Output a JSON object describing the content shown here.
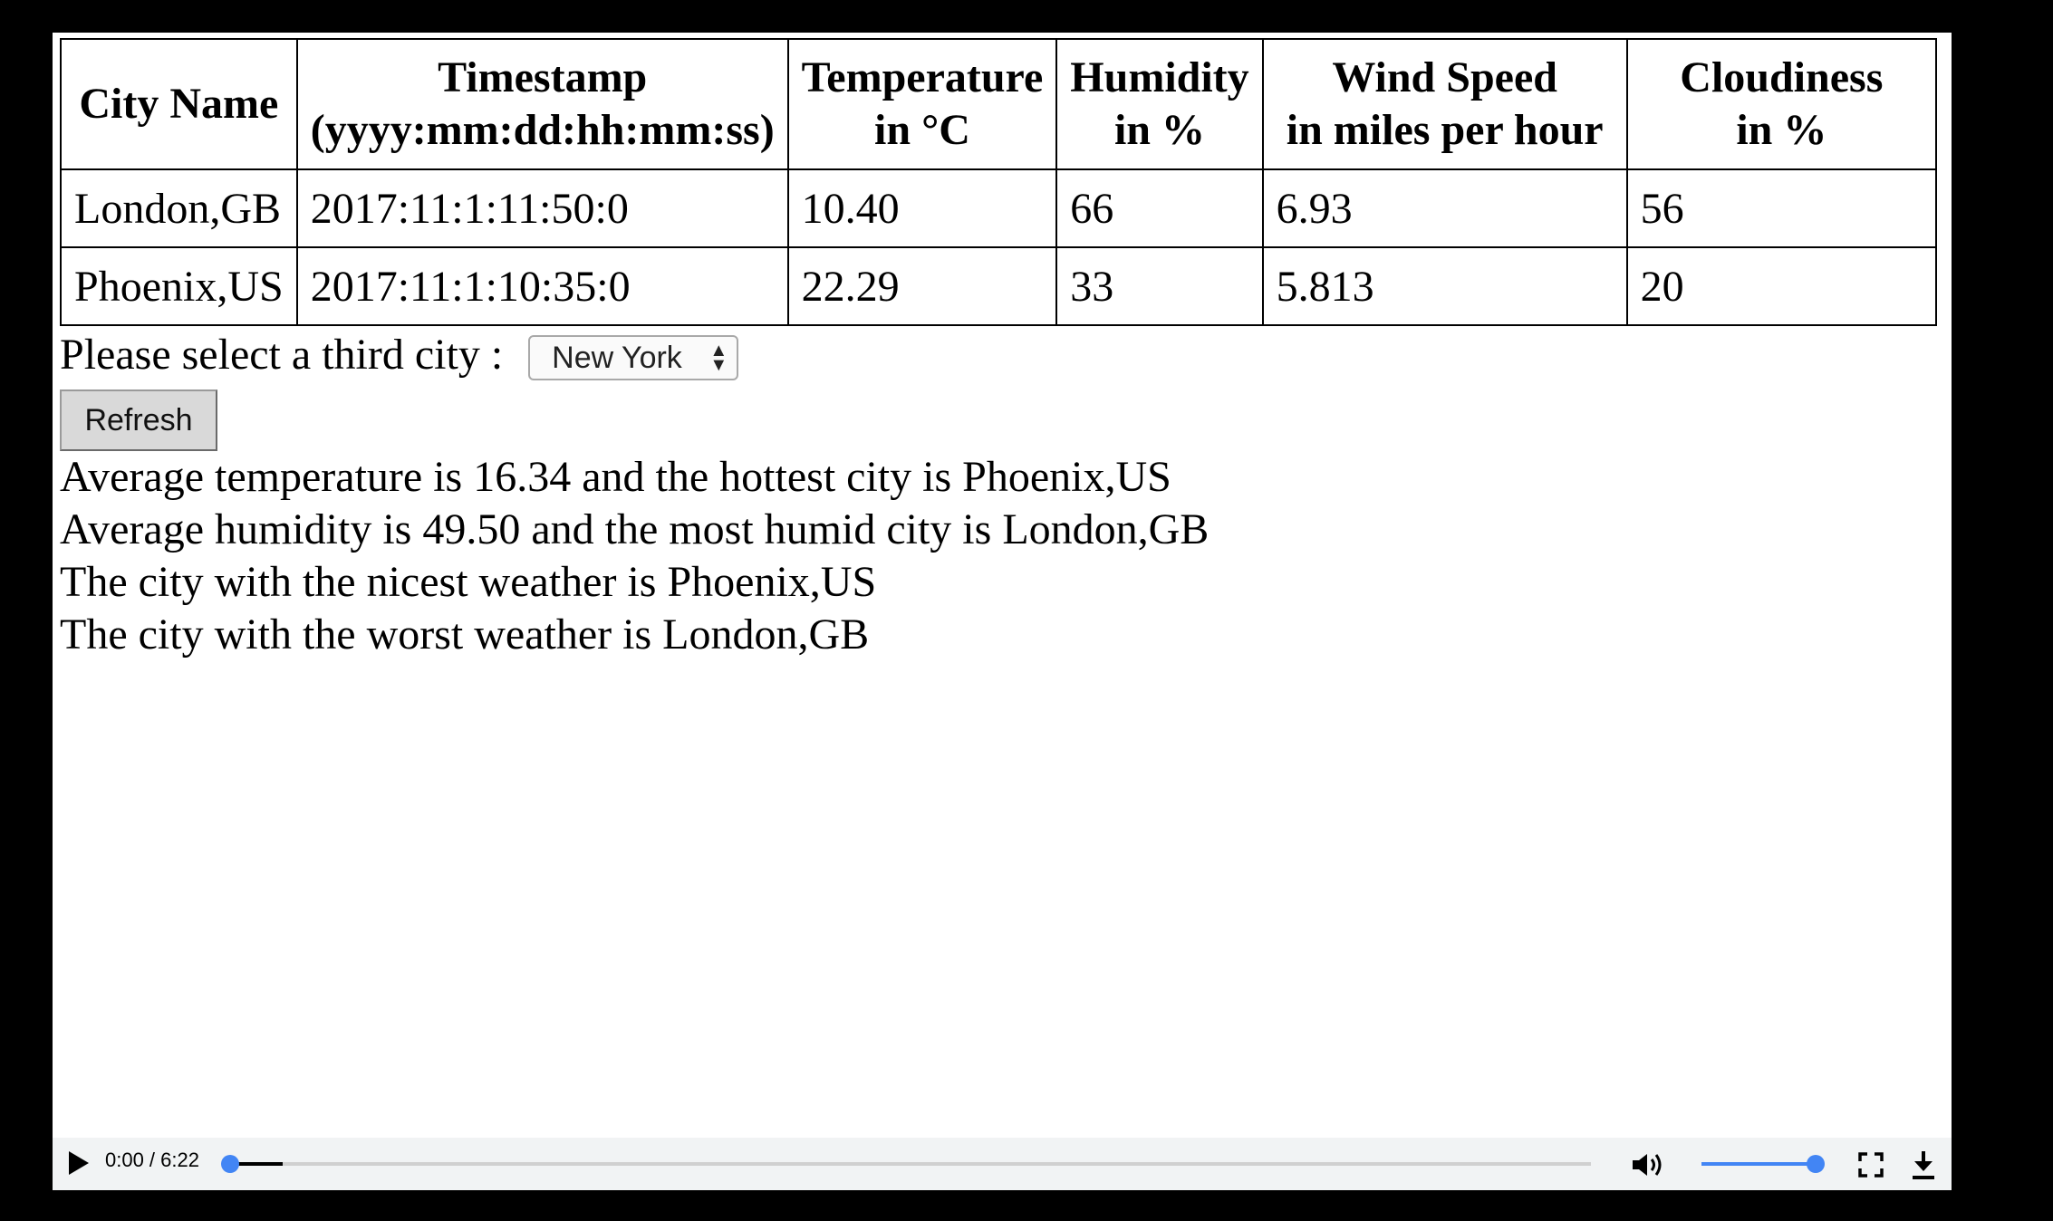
{
  "table": {
    "headers": [
      [
        "City Name"
      ],
      [
        "Timestamp",
        "(yyyy:mm:dd:hh:mm:ss)"
      ],
      [
        "Temperature",
        "in °C"
      ],
      [
        "Humidity",
        "in %"
      ],
      [
        "Wind Speed",
        "in miles per hour"
      ],
      [
        "Cloudiness",
        "in %"
      ]
    ],
    "rows": [
      [
        "London,GB",
        "2017:11:1:11:50:0",
        "10.40",
        "66",
        "6.93",
        "56"
      ],
      [
        "Phoenix,US",
        "2017:11:1:10:35:0",
        "22.29",
        "33",
        "5.813",
        "20"
      ]
    ]
  },
  "city_select": {
    "label": "Please select a third city : ",
    "selected": "New York"
  },
  "refresh_label": "Refresh",
  "results": [
    "Average temperature is 16.34 and the hottest city is Phoenix,US",
    "Average humidity is 49.50 and the most humid city is London,GB",
    "The city with the nicest weather is Phoenix,US",
    "The city with the worst weather is London,GB"
  ],
  "player": {
    "time": "0:00 / 6:22",
    "progress_fraction": 0.0,
    "volume_fraction": 1.0,
    "accent_color": "#4285f4",
    "icons": [
      "play-icon",
      "volume-icon",
      "fullscreen-icon",
      "download-icon"
    ]
  }
}
